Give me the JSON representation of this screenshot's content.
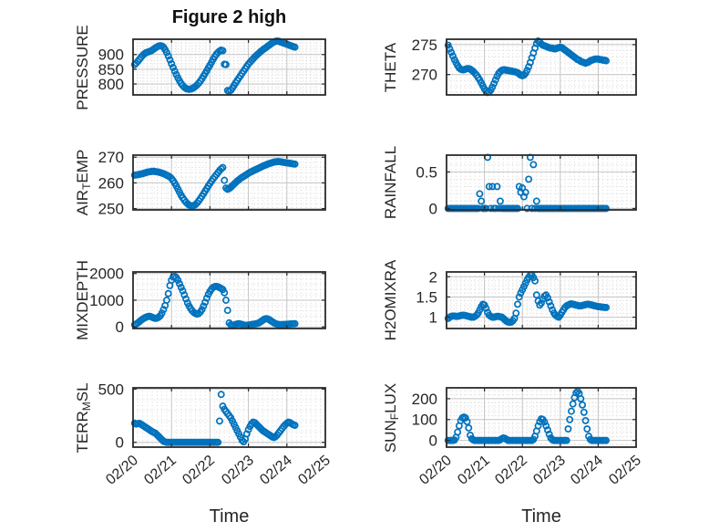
{
  "title": "Figure 2 high",
  "chart_data": {
    "type": "scatter",
    "marker": "open-circle",
    "marker_color": "#0072BD",
    "xlabel": "Time",
    "xtick_labels": [
      "02/20",
      "02/21",
      "02/22",
      "02/23",
      "02/24",
      "02/25"
    ],
    "xlim_days": [
      0,
      5
    ],
    "start_hour": 1,
    "sample_interval_hours": 1,
    "grid": "major-solid-minor-dotted",
    "panels": [
      {
        "id": "pressure",
        "ylabel_parts": [
          {
            "text": "PRESSURE"
          }
        ],
        "yticks": [
          800,
          850,
          900
        ],
        "ylim": [
          763,
          952
        ],
        "yminor": 10,
        "values": [
          866,
          871,
          877,
          884,
          891,
          897,
          902,
          906,
          908,
          910,
          912,
          915,
          919,
          923,
          926,
          929,
          930,
          929,
          925,
          917,
          907,
          895,
          882,
          869,
          856,
          844,
          832,
          821,
          811,
          802,
          795,
          789,
          785,
          783,
          782,
          783,
          785,
          788,
          792,
          797,
          803,
          810,
          818,
          827,
          836,
          845,
          855,
          864,
          874,
          884,
          893,
          901,
          907,
          912,
          915,
          913,
          867,
          866,
          778,
          775,
          779,
          786,
          795,
          804,
          812,
          820,
          828,
          836,
          844,
          852,
          860,
          868,
          874,
          880,
          886,
          892,
          897,
          902,
          907,
          912,
          916,
          920,
          924,
          928,
          932,
          936,
          940,
          943,
          945,
          946,
          945,
          943,
          941,
          939,
          937,
          935,
          933,
          931,
          929,
          927,
          925
        ]
      },
      {
        "id": "theta",
        "ylabel_parts": [
          {
            "text": "THETA"
          }
        ],
        "yticks": [
          270,
          275
        ],
        "ylim": [
          266.6,
          275.9
        ],
        "yminor": 1,
        "values": [
          274.9,
          274.3,
          273.7,
          273.1,
          272.5,
          272.0,
          271.5,
          271.1,
          270.9,
          270.8,
          270.8,
          270.9,
          271.0,
          271.0,
          270.9,
          270.7,
          270.5,
          270.2,
          269.9,
          269.5,
          269.1,
          268.6,
          268.1,
          267.6,
          267.2,
          267.0,
          267.1,
          267.4,
          267.9,
          268.5,
          269.1,
          269.7,
          270.2,
          270.5,
          270.7,
          270.8,
          270.8,
          270.7,
          270.7,
          270.6,
          270.6,
          270.5,
          270.5,
          270.4,
          270.3,
          270.1,
          269.9,
          269.8,
          269.9,
          270.2,
          270.7,
          271.3,
          272.0,
          272.8,
          273.6,
          274.4,
          275.2,
          275.6,
          275.4,
          275.1,
          274.9,
          274.8,
          274.7,
          274.6,
          274.5,
          274.4,
          274.4,
          274.3,
          274.3,
          274.4,
          274.5,
          274.6,
          274.5,
          274.3,
          274.1,
          273.9,
          273.7,
          273.5,
          273.3,
          273.1,
          272.9,
          272.7,
          272.5,
          272.4,
          272.2,
          272.1,
          272.0,
          271.9,
          272.0,
          272.1,
          272.3,
          272.4,
          272.5,
          272.6,
          272.6,
          272.6,
          272.5,
          272.5,
          272.4,
          272.4,
          272.3
        ]
      },
      {
        "id": "air-temp",
        "ylabel_parts": [
          {
            "text": "AIR"
          },
          {
            "text": "T",
            "sub": true
          },
          {
            "text": "EMP"
          }
        ],
        "yticks": [
          250,
          260,
          270
        ],
        "ylim": [
          249.5,
          270.8
        ],
        "yminor": 2,
        "values": [
          263.0,
          263.1,
          263.2,
          263.3,
          263.5,
          263.6,
          263.8,
          264.0,
          264.2,
          264.3,
          264.4,
          264.5,
          264.5,
          264.4,
          264.3,
          264.2,
          264.0,
          263.8,
          263.6,
          263.3,
          263.0,
          262.7,
          262.3,
          261.7,
          260.9,
          259.9,
          258.8,
          257.6,
          256.4,
          255.2,
          254.2,
          253.3,
          252.5,
          251.9,
          251.4,
          251.1,
          251.0,
          251.2,
          251.6,
          252.2,
          253.0,
          253.9,
          254.8,
          255.8,
          256.8,
          257.8,
          258.8,
          259.8,
          260.7,
          261.6,
          262.4,
          263.2,
          264.0,
          264.8,
          265.5,
          266.0,
          261.0,
          258.0,
          257.5,
          257.8,
          258.3,
          258.9,
          259.5,
          260.1,
          260.7,
          261.2,
          261.7,
          262.1,
          262.5,
          262.9,
          263.3,
          263.7,
          264.1,
          264.4,
          264.7,
          265.0,
          265.3,
          265.6,
          265.9,
          266.2,
          266.5,
          266.8,
          267.0,
          267.3,
          267.5,
          267.7,
          267.9,
          268.1,
          268.2,
          268.3,
          268.3,
          268.2,
          268.1,
          268.0,
          267.9,
          267.8,
          267.7,
          267.6,
          267.5,
          267.4,
          267.3
        ]
      },
      {
        "id": "rainfall",
        "ylabel_parts": [
          {
            "text": "RAINFALL"
          }
        ],
        "yticks": [
          0,
          0.5
        ],
        "ylim": [
          -0.02,
          0.73
        ],
        "yminor": 0.1,
        "values": [
          0,
          0,
          0,
          0,
          0,
          0,
          0,
          0,
          0,
          0,
          0,
          0,
          0,
          0,
          0,
          0,
          0,
          0,
          0,
          0,
          0.2,
          0.1,
          0,
          0,
          0,
          0.7,
          0.3,
          0,
          0.3,
          0,
          0,
          0.3,
          0,
          0.1,
          0,
          0,
          0,
          0,
          0,
          0,
          0,
          0,
          0,
          0,
          0,
          0.3,
          0.22,
          0.28,
          0.16,
          0.22,
          0,
          0.4,
          0.7,
          0,
          0.6,
          0,
          0.1,
          0,
          0,
          0,
          0,
          0,
          0,
          0,
          0,
          0,
          0,
          0,
          0,
          0,
          0,
          0,
          0,
          0,
          0,
          0,
          0,
          0,
          0,
          0,
          0,
          0,
          0,
          0,
          0,
          0,
          0,
          0,
          0,
          0,
          0,
          0,
          0,
          0,
          0,
          0,
          0,
          0,
          0,
          0,
          0
        ]
      },
      {
        "id": "mixdepth",
        "ylabel_parts": [
          {
            "text": "MIXDEPTH"
          }
        ],
        "yticks": [
          0,
          1000,
          2000
        ],
        "ylim": [
          -60,
          2060
        ],
        "yminor": 200,
        "values": [
          80,
          110,
          150,
          200,
          250,
          290,
          330,
          360,
          385,
          400,
          385,
          360,
          335,
          320,
          330,
          365,
          420,
          520,
          650,
          800,
          1000,
          1250,
          1550,
          1750,
          1870,
          1900,
          1850,
          1750,
          1620,
          1480,
          1350,
          1200,
          1050,
          900,
          780,
          680,
          600,
          540,
          500,
          480,
          500,
          560,
          650,
          780,
          920,
          1080,
          1220,
          1330,
          1420,
          1480,
          1510,
          1520,
          1500,
          1470,
          1440,
          1400,
          1280,
          1000,
          620,
          150,
          80,
          60,
          70,
          90,
          110,
          120,
          110,
          90,
          70,
          60,
          60,
          70,
          80,
          90,
          100,
          110,
          120,
          140,
          170,
          210,
          250,
          290,
          310,
          300,
          270,
          230,
          190,
          150,
          120,
          100,
          90,
          85,
          85,
          90,
          95,
          100,
          105,
          110,
          115,
          118,
          120
        ]
      },
      {
        "id": "h2omixra",
        "ylabel_parts": [
          {
            "text": "H2OMIXRA"
          }
        ],
        "yticks": [
          1,
          1.5,
          2
        ],
        "ylim": [
          0.72,
          2.12
        ],
        "yminor": 0.1,
        "values": [
          0.97,
          1.0,
          1.02,
          1.03,
          1.03,
          1.02,
          1.02,
          1.03,
          1.04,
          1.05,
          1.05,
          1.04,
          1.03,
          1.02,
          1.01,
          1.0,
          1.0,
          1.02,
          1.05,
          1.1,
          1.18,
          1.26,
          1.32,
          1.3,
          1.22,
          1.12,
          1.05,
          1.02,
          1.0,
          1.0,
          1.01,
          1.02,
          1.02,
          1.01,
          1.0,
          0.97,
          0.93,
          0.9,
          0.88,
          0.87,
          0.88,
          0.91,
          0.97,
          1.1,
          1.32,
          1.5,
          1.6,
          1.68,
          1.76,
          1.84,
          1.92,
          1.99,
          2.04,
          2.05,
          1.98,
          1.9,
          1.55,
          1.4,
          1.3,
          1.35,
          1.45,
          1.52,
          1.55,
          1.48,
          1.38,
          1.28,
          1.18,
          1.1,
          1.05,
          1.02,
          1.0,
          1.05,
          1.12,
          1.18,
          1.24,
          1.28,
          1.3,
          1.32,
          1.33,
          1.32,
          1.31,
          1.3,
          1.29,
          1.28,
          1.28,
          1.29,
          1.3,
          1.31,
          1.32,
          1.32,
          1.31,
          1.3,
          1.29,
          1.28,
          1.27,
          1.26,
          1.26,
          1.25,
          1.25,
          1.24,
          1.24
        ]
      },
      {
        "id": "terr-msl",
        "ylabel_parts": [
          {
            "text": "TERR"
          },
          {
            "text": "M",
            "sub": true
          },
          {
            "text": "SL"
          }
        ],
        "yticks": [
          0,
          500
        ],
        "ylim": [
          -45,
          512
        ],
        "yminor": 100,
        "values": [
          180,
          172,
          175,
          178,
          170,
          160,
          150,
          140,
          130,
          120,
          110,
          100,
          93,
          85,
          70,
          55,
          40,
          25,
          10,
          5,
          0,
          0,
          0,
          0,
          0,
          0,
          0,
          0,
          0,
          0,
          0,
          0,
          0,
          0,
          0,
          0,
          0,
          0,
          0,
          0,
          0,
          0,
          0,
          0,
          0,
          0,
          0,
          0,
          0,
          0,
          0,
          0,
          0,
          200,
          450,
          340,
          310,
          290,
          270,
          250,
          230,
          200,
          170,
          140,
          110,
          80,
          50,
          20,
          5,
          30,
          80,
          120,
          150,
          175,
          190,
          185,
          170,
          155,
          140,
          125,
          110,
          100,
          90,
          80,
          70,
          60,
          50,
          45,
          55,
          70,
          90,
          110,
          130,
          150,
          165,
          180,
          190,
          185,
          175,
          165,
          160
        ]
      },
      {
        "id": "sun-flux",
        "ylabel_parts": [
          {
            "text": "SUN"
          },
          {
            "text": "F",
            "sub": true
          },
          {
            "text": "LUX"
          }
        ],
        "yticks": [
          0,
          100,
          200
        ],
        "ylim": [
          -32,
          252
        ],
        "yminor": 20,
        "values": [
          0,
          0,
          0,
          0,
          2,
          15,
          40,
          70,
          95,
          108,
          112,
          108,
          90,
          60,
          25,
          8,
          2,
          0,
          0,
          0,
          0,
          0,
          0,
          0,
          0,
          0,
          0,
          0,
          0,
          0,
          0,
          0,
          0,
          3,
          8,
          12,
          10,
          5,
          0,
          0,
          0,
          0,
          0,
          0,
          0,
          0,
          0,
          0,
          0,
          0,
          0,
          0,
          0,
          0,
          5,
          20,
          45,
          70,
          90,
          103,
          100,
          88,
          70,
          50,
          30,
          12,
          3,
          0,
          0,
          0,
          0,
          0,
          0,
          0,
          0,
          0,
          55,
          100,
          140,
          175,
          205,
          228,
          235,
          225,
          200,
          170,
          135,
          95,
          55,
          20,
          5,
          0,
          0,
          0,
          0,
          0,
          0,
          0,
          0,
          0,
          0
        ]
      }
    ]
  }
}
